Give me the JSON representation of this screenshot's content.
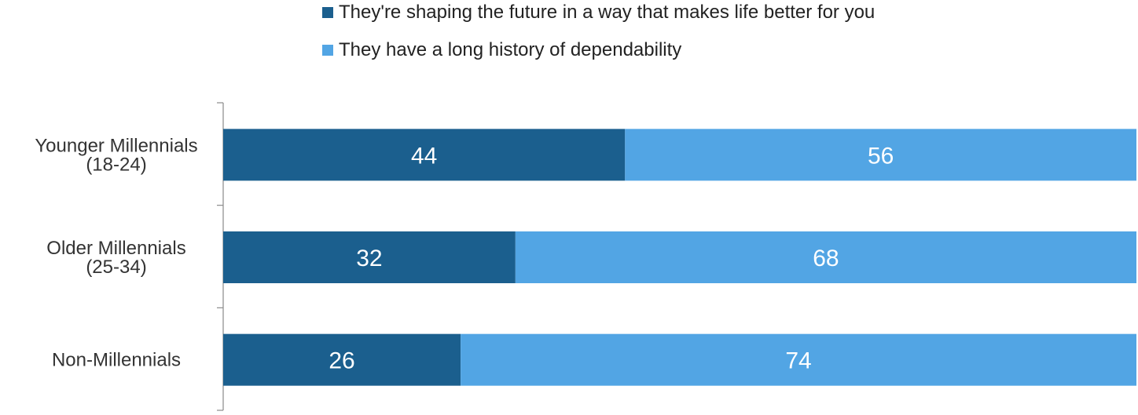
{
  "chart_data": {
    "type": "bar",
    "orientation": "horizontal",
    "stacked": true,
    "title": "",
    "xlabel": "",
    "ylabel": "",
    "categories": [
      [
        "Younger Millennials",
        "(18-24)"
      ],
      [
        "Older Millennials",
        "(25-34)"
      ],
      [
        "Non-Millennials"
      ]
    ],
    "series": [
      {
        "name": "They're shaping the future in a way that makes life better for you",
        "color": "#1b5f8e",
        "values": [
          44,
          32,
          26
        ]
      },
      {
        "name": "They have a long history of dependability",
        "color": "#52a5e4",
        "values": [
          56,
          68,
          74
        ]
      }
    ],
    "xlim": [
      0,
      100
    ],
    "legend": "top",
    "grid": false
  }
}
